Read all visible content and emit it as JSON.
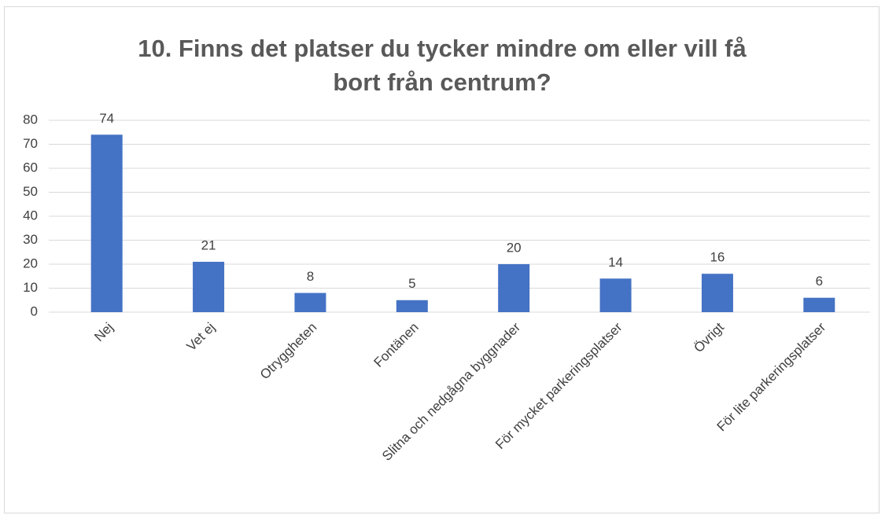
{
  "chart_data": {
    "type": "bar",
    "title": "10. Finns det platser du tycker mindre om eller vill få bort från centrum?",
    "categories": [
      "Nej",
      "Vet ej",
      "Otryggheten",
      "Fontänen",
      "Slitna och nedgågna byggnader",
      "För mycket parkeringsplatser",
      "Övrigt",
      "För lite parkeringsplatser"
    ],
    "values": [
      74,
      21,
      8,
      5,
      20,
      14,
      16,
      6
    ],
    "color": "#4472c4",
    "ylim": [
      0,
      80
    ],
    "yticks": [
      0,
      10,
      20,
      30,
      40,
      50,
      60,
      70,
      80
    ],
    "grid": true
  }
}
